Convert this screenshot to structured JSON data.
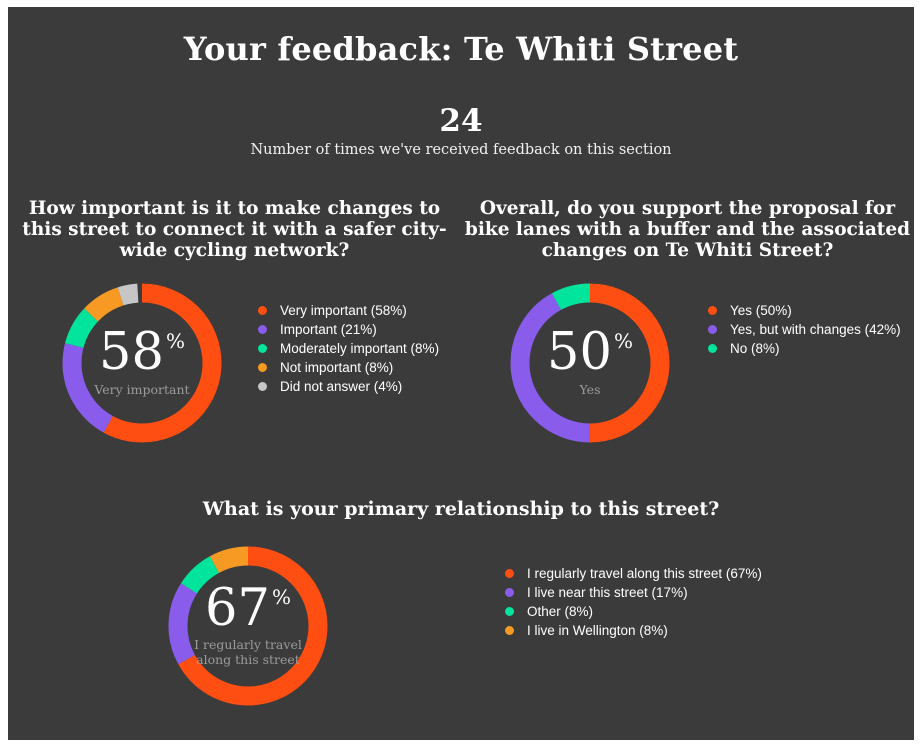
{
  "page": {
    "title": "Your feedback: Te Whiti Street",
    "stat_value": "24",
    "stat_caption": "Number of times we've received feedback on this section"
  },
  "colors": {
    "page_background": "#ffffff",
    "panel_background": "#3b3b3b",
    "text": "#ffffff",
    "muted_text": "#9b9b9b",
    "vermilion": "#ff4e11",
    "purple": "#8a5ceb",
    "green": "#00e49c",
    "amber": "#f79a23",
    "gray": "#c6c6c6"
  },
  "chart_data": [
    {
      "type": "pie",
      "variant": "donut",
      "title": "How important is it to make changes to this street to connect it with a safer city-wide cycling network?",
      "center_value": "58",
      "center_unit": "%",
      "center_label": "Very important",
      "legend_position": "right",
      "segments": [
        {
          "label": "Very important (58%)",
          "value": 58,
          "color": "#ff4e11"
        },
        {
          "label": "Important (21%)",
          "value": 21,
          "color": "#8a5ceb"
        },
        {
          "label": "Moderately important (8%)",
          "value": 8,
          "color": "#00e49c"
        },
        {
          "label": "Not important (8%)",
          "value": 8,
          "color": "#f79a23"
        },
        {
          "label": "Did not answer (4%)",
          "value": 4,
          "color": "#c6c6c6"
        }
      ]
    },
    {
      "type": "pie",
      "variant": "donut",
      "title": "Overall, do you support the proposal for bike lanes with a buffer and the associated changes on Te Whiti Street?",
      "center_value": "50",
      "center_unit": "%",
      "center_label": "Yes",
      "legend_position": "right",
      "segments": [
        {
          "label": "Yes (50%)",
          "value": 50,
          "color": "#ff4e11"
        },
        {
          "label": "Yes, but with changes (42%)",
          "value": 42,
          "color": "#8a5ceb"
        },
        {
          "label": "No (8%)",
          "value": 8,
          "color": "#00e49c"
        }
      ]
    },
    {
      "type": "pie",
      "variant": "donut",
      "title": "What is your primary relationship to this street?",
      "center_value": "67",
      "center_unit": "%",
      "center_label": "I regularly travel along this street",
      "legend_position": "right",
      "segments": [
        {
          "label": "I regularly travel along this street (67%)",
          "value": 67,
          "color": "#ff4e11"
        },
        {
          "label": "I live near this street (17%)",
          "value": 17,
          "color": "#8a5ceb"
        },
        {
          "label": "Other (8%)",
          "value": 8,
          "color": "#00e49c"
        },
        {
          "label": "I live in Wellington (8%)",
          "value": 8,
          "color": "#f79a23"
        }
      ]
    }
  ]
}
